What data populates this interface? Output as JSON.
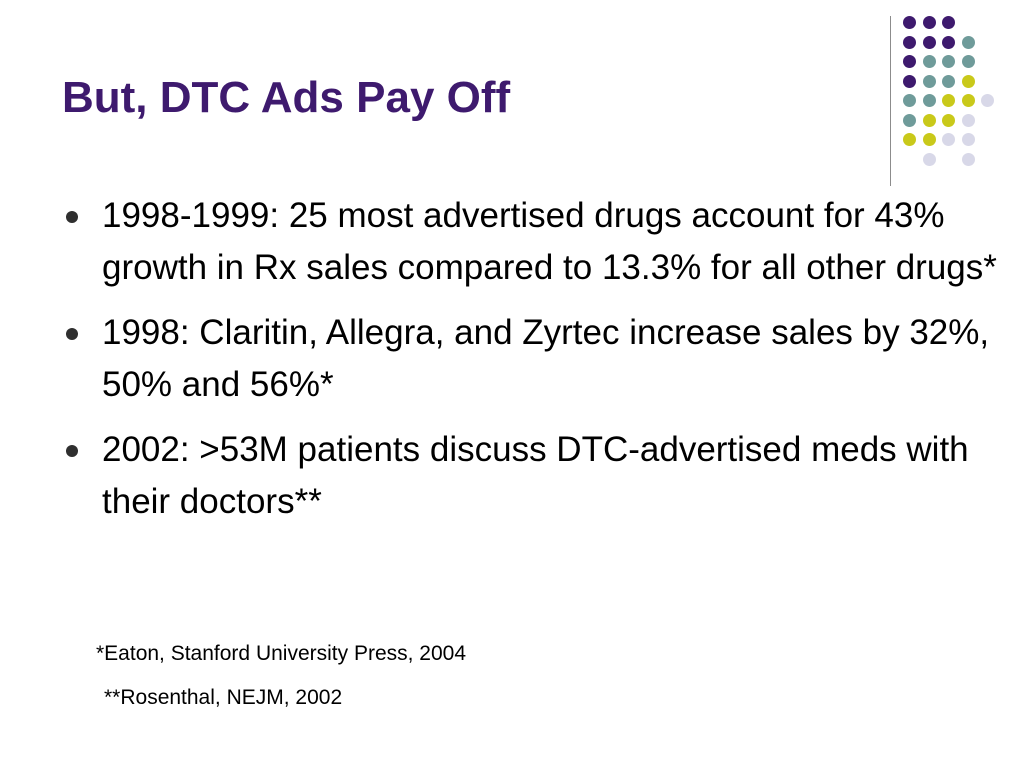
{
  "slide": {
    "title": "But, DTC Ads Pay Off",
    "bullets": [
      {
        "text": "1998-1999: 25 most advertised drugs account for 43% growth in Rx sales compared to 13.3% for all other drugs*"
      },
      {
        "text": "1998: Claritin, Allegra, and Zyrtec increase sales by 32%, 50% and 56%*"
      },
      {
        "text": "2002: >53M patients discuss DTC-advertised meds with their doctors**"
      }
    ],
    "references": [
      "*Eaton, Stanford University Press, 2004",
      "**Rosenthal, NEJM, 2002"
    ]
  },
  "colors": {
    "title": "#3e1a6e",
    "purple": "#3e1a6e",
    "teal": "#6f9b9a",
    "olive": "#c9c91a",
    "lavender": "#d8d8e8"
  },
  "decoration": {
    "dot_grid": [
      [
        "purple",
        "purple",
        "purple",
        null,
        null
      ],
      [
        "purple",
        "purple",
        "purple",
        "teal",
        null
      ],
      [
        "purple",
        "teal",
        "teal",
        "teal",
        null
      ],
      [
        "purple",
        "teal",
        "teal",
        "olive",
        null
      ],
      [
        "teal",
        "teal",
        "olive",
        "olive",
        "lavender"
      ],
      [
        "teal",
        "olive",
        "olive",
        "lavender",
        null
      ],
      [
        "olive",
        "olive",
        "lavender",
        "lavender",
        null
      ],
      [
        null,
        "lavender",
        null,
        "lavender",
        null
      ]
    ]
  }
}
